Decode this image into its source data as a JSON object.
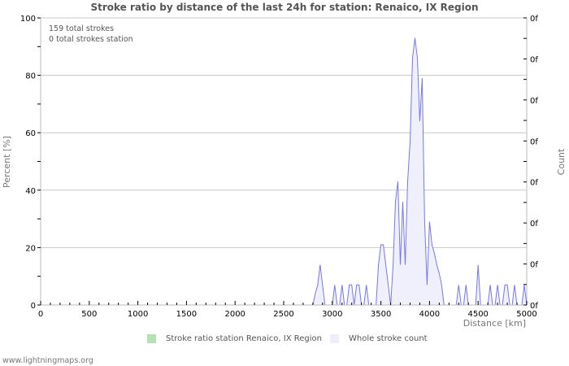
{
  "header": {
    "title": "Stroke ratio by distance of the last 24h for station: Renaico, IX Region"
  },
  "info": {
    "line1": "159 total strokes",
    "line2": "0 total strokes station"
  },
  "axes": {
    "left_title": "Percent   [%]",
    "right_title": "Count",
    "x_title": "Distance   [km]",
    "left_ticks": [
      "0",
      "20",
      "40",
      "60",
      "80",
      "100"
    ],
    "right_ticks": [
      "0f",
      "0f",
      "0f",
      "0f",
      "0f",
      "0f",
      "0f",
      "0f"
    ],
    "x_ticks": [
      "0",
      "500",
      "1000",
      "1500",
      "2000",
      "2500",
      "3000",
      "3500",
      "4000",
      "4500",
      "5000"
    ]
  },
  "legend": {
    "items": [
      {
        "label": "Stroke ratio station Renaico, IX Region",
        "color": "#b5e2b5"
      },
      {
        "label": "Whole stroke count",
        "color": "#eeeefc"
      }
    ]
  },
  "footer": {
    "text": "www.lightningmaps.org"
  },
  "colors": {
    "series_line": "#7777ee",
    "series_fill": "#f0f0fc",
    "grid": "#c8c8c8",
    "axis": "#bbbbbb"
  },
  "chart_data": {
    "type": "area",
    "title": "Stroke ratio by distance of the last 24h for station: Renaico, IX Region",
    "xlabel": "Distance [km]",
    "ylabel": "Percent [%]",
    "ylabel_right": "Count",
    "xlim": [
      0,
      5000
    ],
    "ylim": [
      0,
      100
    ],
    "grid": true,
    "legend_position": "bottom",
    "annotations": [
      "159 total strokes",
      "0 total strokes station"
    ],
    "series": [
      {
        "name": "Whole stroke count",
        "x": [
          2800,
          2825,
          2850,
          2875,
          2900,
          2925,
          2950,
          3000,
          3025,
          3050,
          3075,
          3100,
          3125,
          3150,
          3175,
          3200,
          3225,
          3250,
          3275,
          3300,
          3325,
          3350,
          3375,
          3400,
          3450,
          3475,
          3500,
          3525,
          3550,
          3575,
          3600,
          3625,
          3650,
          3675,
          3700,
          3725,
          3750,
          3775,
          3800,
          3825,
          3850,
          3875,
          3900,
          3925,
          3950,
          3975,
          4000,
          4025,
          4050,
          4075,
          4100,
          4125,
          4150,
          4175,
          4200,
          4275,
          4300,
          4325,
          4350,
          4375,
          4400,
          4475,
          4500,
          4525,
          4600,
          4625,
          4650,
          4675,
          4700,
          4725,
          4750,
          4775,
          4800,
          4825,
          4850,
          4875,
          4900,
          4925,
          4950,
          4975,
          5000
        ],
        "values": [
          0,
          4,
          7,
          14,
          7,
          0,
          0,
          0,
          7,
          0,
          0,
          7,
          0,
          0,
          7,
          7,
          0,
          7,
          7,
          0,
          0,
          7,
          0,
          0,
          0,
          14,
          21,
          21,
          14,
          7,
          0,
          14,
          36,
          43,
          14,
          36,
          14,
          43,
          57,
          86,
          93,
          86,
          64,
          79,
          29,
          7,
          29,
          21,
          18,
          14,
          11,
          7,
          0,
          0,
          0,
          0,
          7,
          0,
          0,
          7,
          0,
          0,
          14,
          0,
          0,
          7,
          0,
          0,
          7,
          0,
          0,
          7,
          7,
          0,
          0,
          7,
          0,
          0,
          0,
          7,
          0
        ]
      },
      {
        "name": "Stroke ratio station Renaico, IX Region",
        "x": [],
        "values": []
      }
    ]
  }
}
